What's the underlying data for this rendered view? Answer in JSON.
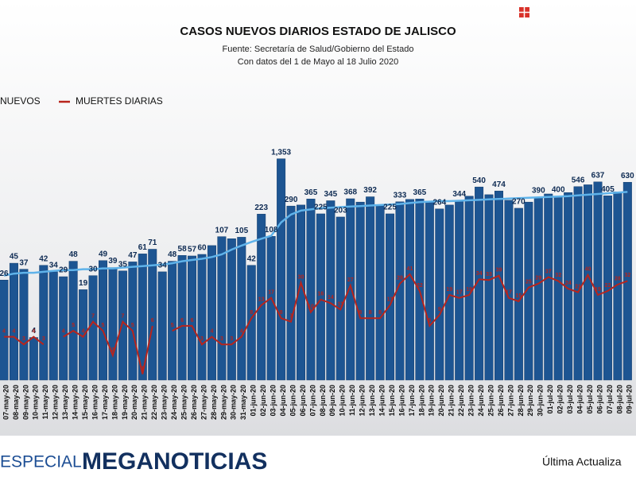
{
  "chart_data": {
    "type": "bar",
    "title": "CASOS NUEVOS DIARIOS ESTADO DE JALISCO",
    "subtitle": [
      "Fuente: Secretaría de Salud/Gobierno del Estado",
      "Con datos del 1 de Mayo al 18 Julio 2020"
    ],
    "categories": [
      "07-may-20",
      "08-may-20",
      "09-may-20",
      "10-may-20",
      "11-may-20",
      "12-may-20",
      "13-may-20",
      "14-may-20",
      "15-may-20",
      "16-may-20",
      "17-may-20",
      "18-may-20",
      "19-may-20",
      "20-may-20",
      "21-may-20",
      "22-may-20",
      "23-may-20",
      "24-may-20",
      "25-may-20",
      "26-may-20",
      "27-may-20",
      "28-may-20",
      "29-may-20",
      "30-may-20",
      "31-may-20",
      "01-jun-20",
      "02-jun-20",
      "03-jun-20",
      "04-jun-20",
      "05-jun-20",
      "06-jun-20",
      "07-jun-20",
      "08-jun-20",
      "09-jun-20",
      "10-jun-20",
      "11-jun-20",
      "12-jun-20",
      "13-jun-20",
      "14-jun-20",
      "15-jun-20",
      "16-jun-20",
      "17-jun-20",
      "18-jun-20",
      "19-jun-20",
      "20-jun-20",
      "21-jun-20",
      "22-jun-20",
      "23-jun-20",
      "24-jun-20",
      "25-jun-20",
      "26-jun-20",
      "27-jun-20",
      "28-jun-20",
      "29-jun-20",
      "30-jun-20",
      "01-jul-20",
      "02-jul-20",
      "03-jul-20",
      "04-jul-20",
      "05-jul-20",
      "06-jul-20",
      "07-jul-20",
      "08-jul-20",
      "09-jul-20"
    ],
    "series": [
      {
        "name": "NUEVOS",
        "color": "#1d5592",
        "values": [
          26,
          45,
          37,
          4,
          42,
          34,
          29,
          48,
          19,
          30,
          49,
          39,
          35,
          47,
          61,
          71,
          34,
          48,
          58,
          57,
          60,
          80,
          107,
          100,
          105,
          42,
          223,
          108,
          1353,
          290,
          300,
          365,
          225,
          345,
          203,
          368,
          330,
          392,
          300,
          225,
          333,
          360,
          365,
          340,
          264,
          300,
          344,
          400,
          540,
          420,
          474,
          350,
          270,
          330,
          390,
          430,
          400,
          450,
          546,
          580,
          637,
          405,
          460,
          630
        ],
        "value_labels": [
          "26",
          "45",
          "37",
          "4",
          "42",
          "34",
          "29",
          "48",
          "19",
          "30",
          "49",
          "39",
          "35",
          "47",
          "61",
          "71",
          "34",
          "48",
          "58",
          "57",
          "60",
          null,
          "107",
          null,
          "105",
          "42",
          "223",
          "108",
          "1,353",
          "290",
          null,
          "365",
          "225",
          "345",
          "203",
          "368",
          null,
          "392",
          null,
          "225",
          "333",
          null,
          "365",
          null,
          "264",
          null,
          "344",
          null,
          "540",
          null,
          "474",
          null,
          "270",
          null,
          "390",
          null,
          "400",
          null,
          "546",
          null,
          "637",
          "405",
          null,
          "630"
        ]
      },
      {
        "name": "MUERTES DIARIAS",
        "color": "#b8241c",
        "type": "line",
        "axis": "y2",
        "values": [
          4,
          4,
          3,
          4,
          3,
          null,
          4,
          5,
          4,
          7,
          5,
          2,
          7,
          5,
          1,
          6,
          null,
          5,
          6,
          6,
          3,
          4,
          3,
          3,
          4,
          8,
          13,
          17,
          8,
          7,
          30,
          10,
          16,
          14,
          11,
          27,
          8,
          8,
          8,
          13,
          29,
          41,
          22,
          6,
          9,
          19,
          17,
          19,
          34,
          33,
          39,
          17,
          15,
          25,
          29,
          37,
          32,
          24,
          21,
          40,
          19,
          22,
          28,
          32
        ]
      },
      {
        "color": "#5fb3ea",
        "type": "line",
        "values": [
          30,
          32,
          33,
          33,
          34,
          35,
          36,
          36,
          37,
          37,
          38,
          38,
          39,
          40,
          41,
          42,
          43,
          45,
          48,
          50,
          52,
          55,
          60,
          70,
          80,
          90,
          100,
          110,
          170,
          220,
          250,
          260,
          270,
          275,
          280,
          285,
          290,
          295,
          300,
          305,
          310,
          320,
          330,
          335,
          340,
          340,
          345,
          350,
          355,
          360,
          365,
          370,
          375,
          380,
          385,
          390,
          395,
          400,
          410,
          420,
          430,
          440,
          450,
          460
        ]
      }
    ],
    "ylim": [
      1,
      3000
    ],
    "y2lim": [
      0.8,
      7500
    ],
    "log_scale": true
  },
  "footer": {
    "left": "ESPECIAL",
    "brand": "MEGANOTICIAS",
    "right": "Última Actualiza"
  }
}
